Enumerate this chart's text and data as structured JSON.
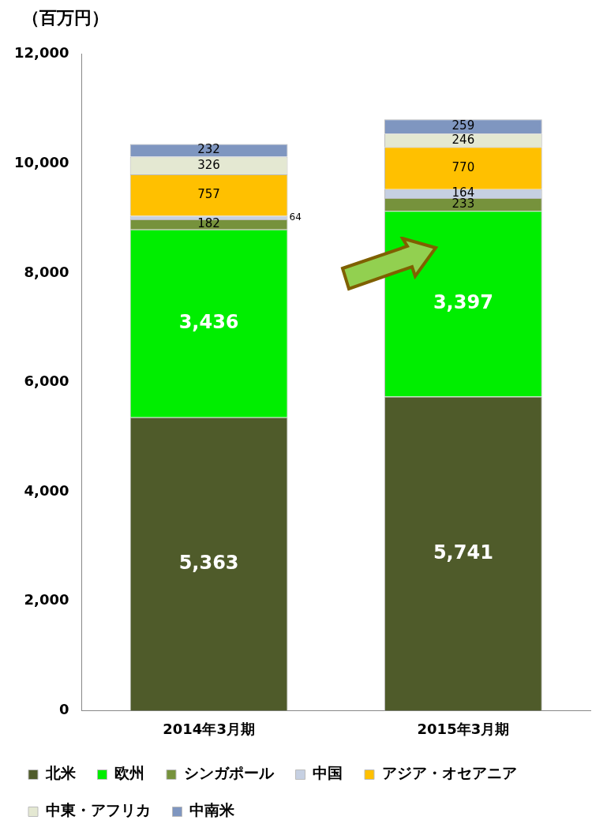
{
  "chart_data": {
    "type": "bar",
    "stacked": true,
    "ylabel": "（百万円）",
    "categories": [
      "2014年3月期",
      "2015年3月期"
    ],
    "series": [
      {
        "name": "北米",
        "color": "#4f5b2a",
        "values": [
          5363,
          5741
        ],
        "value_labels": [
          "5,363",
          "5,741"
        ]
      },
      {
        "name": "欧州",
        "color": "#00ee00",
        "values": [
          3436,
          3397
        ],
        "value_labels": [
          "3,436",
          "3,397"
        ]
      },
      {
        "name": "シンガポール",
        "color": "#76923c",
        "values": [
          182,
          233
        ]
      },
      {
        "name": "中国",
        "color": "#c6d0e2",
        "values": [
          64,
          164
        ]
      },
      {
        "name": "アジア・オセアニア",
        "color": "#ffc000",
        "values": [
          757,
          770
        ]
      },
      {
        "name": "中東・アフリカ",
        "color": "#e4e8d2",
        "values": [
          326,
          246
        ]
      },
      {
        "name": "中南米",
        "color": "#7f96c0",
        "values": [
          232,
          259
        ]
      }
    ],
    "ylim": [
      0,
      12000
    ],
    "yticks": [
      {
        "value": 0,
        "label": "0"
      },
      {
        "value": 2000,
        "label": "2,000"
      },
      {
        "value": 4000,
        "label": "4,000"
      },
      {
        "value": 6000,
        "label": "6,000"
      },
      {
        "value": 8000,
        "label": "8,000"
      },
      {
        "value": 10000,
        "label": "10,000"
      },
      {
        "value": 12000,
        "label": "12,000"
      }
    ],
    "grid": false,
    "legend": "bottom",
    "data_labels": true
  }
}
